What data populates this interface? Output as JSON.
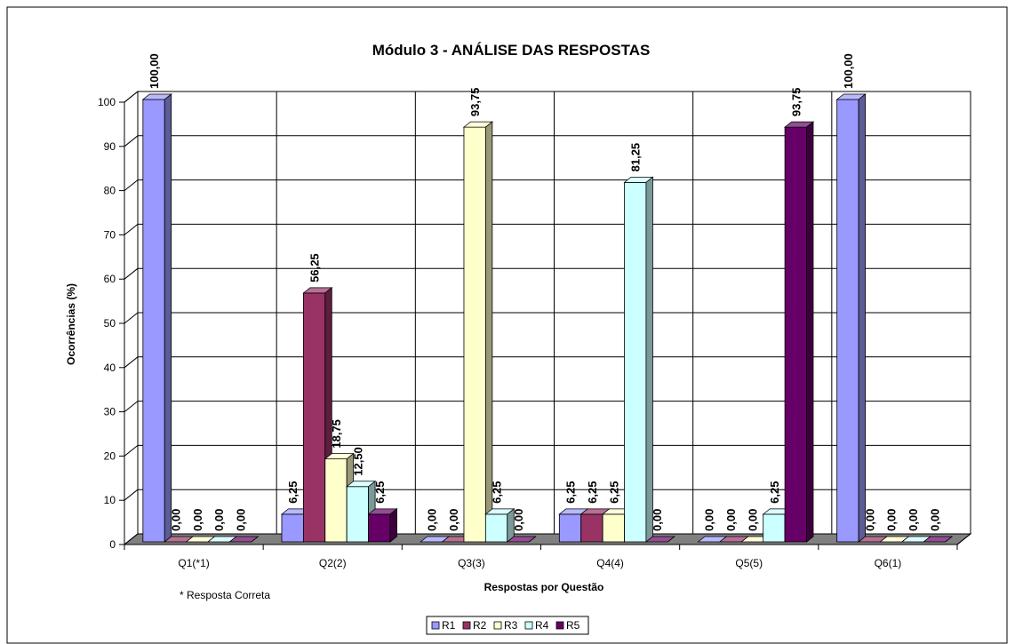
{
  "chart_data": {
    "type": "bar3d",
    "title": "Módulo 3 - ANÁLISE DAS RESPOSTAS",
    "x_label": "Respostas por Questão",
    "y_label": "Ocorrências (%)",
    "annotation": "* Resposta Correta",
    "categories": [
      "Q1(*1)",
      "Q2(2)",
      "Q3(3)",
      "Q4(4)",
      "Q5(5)",
      "Q6(1)"
    ],
    "series": [
      {
        "name": "R1",
        "color": "#9999ff",
        "values": [
          100,
          6.25,
          0,
          6.25,
          0,
          100
        ],
        "value_labels": [
          "100,00",
          "6,25",
          "0,00",
          "6,25",
          "0,00",
          "100,00"
        ]
      },
      {
        "name": "R2",
        "color": "#993366",
        "values": [
          0,
          56.25,
          0,
          6.25,
          0,
          0
        ],
        "value_labels": [
          "0,00",
          "56,25",
          "0,00",
          "6,25",
          "0,00",
          "0,00"
        ]
      },
      {
        "name": "R3",
        "color": "#ffffcc",
        "values": [
          0,
          18.75,
          93.75,
          6.25,
          0,
          0
        ],
        "value_labels": [
          "0,00",
          "18,75",
          "93,75",
          "6,25",
          "0,00",
          "0,00"
        ]
      },
      {
        "name": "R4",
        "color": "#ccffff",
        "values": [
          0,
          12.5,
          6.25,
          81.25,
          6.25,
          0
        ],
        "value_labels": [
          "0,00",
          "12,50",
          "6,25",
          "81,25",
          "6,25",
          "0,00"
        ]
      },
      {
        "name": "R5",
        "color": "#660066",
        "values": [
          0,
          6.25,
          0,
          0,
          93.75,
          0
        ],
        "value_labels": [
          "0,00",
          "6,25",
          "0,00",
          "0,00",
          "93,75",
          "0,00"
        ]
      }
    ],
    "ylim": [
      0,
      100
    ],
    "yticks": [
      0,
      10,
      20,
      30,
      40,
      50,
      60,
      70,
      80,
      90,
      100
    ],
    "grid": true,
    "legend": "bottom"
  }
}
